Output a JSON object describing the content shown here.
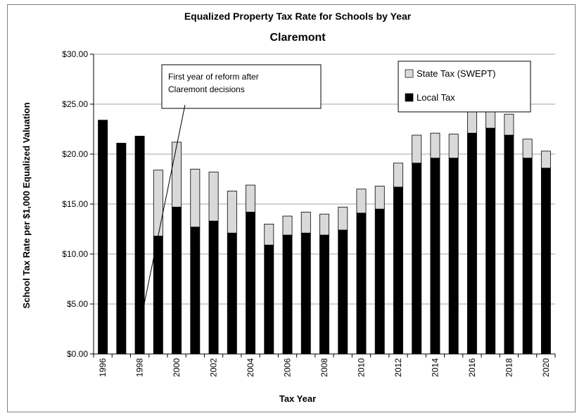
{
  "chart_data": {
    "type": "bar",
    "stacked": true,
    "title": "Equalized Property Tax Rate for Schools by Year",
    "subtitle": "Claremont",
    "xlabel": "Tax Year",
    "ylabel": "School Tax Rate per $1,000 Equalized Valuation",
    "ylim": [
      0,
      30
    ],
    "yticks": [
      "$0.00",
      "$5.00",
      "$10.00",
      "$15.00",
      "$20.00",
      "$25.00",
      "$30.00"
    ],
    "grid": true,
    "legend_position": "top-right",
    "categories": [
      "1996",
      "1997",
      "1998",
      "1999",
      "2000",
      "2001",
      "2002",
      "2003",
      "2004",
      "2005",
      "2006",
      "2007",
      "2008",
      "2009",
      "2010",
      "2011",
      "2012",
      "2013",
      "2014",
      "2015",
      "2016",
      "2017",
      "2018",
      "2019",
      "2020"
    ],
    "xtick_labels": [
      "1996",
      "",
      "1998",
      "",
      "2000",
      "",
      "2002",
      "",
      "2004",
      "",
      "2006",
      "",
      "2008",
      "",
      "2010",
      "",
      "2012",
      "",
      "2014",
      "",
      "2016",
      "",
      "2018",
      "",
      "2020"
    ],
    "series": [
      {
        "name": "Local Tax",
        "color": "#000000",
        "values": [
          23.4,
          21.1,
          21.8,
          11.8,
          14.7,
          12.7,
          13.3,
          12.1,
          14.2,
          10.9,
          11.9,
          12.1,
          11.9,
          12.4,
          14.1,
          14.5,
          16.7,
          19.1,
          19.6,
          19.6,
          22.1,
          22.6,
          21.9,
          19.6,
          18.6
        ]
      },
      {
        "name": "State Tax (SWEPT)",
        "color": "#d9d9d9",
        "values": [
          0,
          0,
          0,
          6.6,
          6.5,
          5.8,
          4.9,
          4.2,
          2.7,
          2.1,
          1.9,
          2.1,
          2.1,
          2.3,
          2.4,
          2.3,
          2.4,
          2.8,
          2.5,
          2.4,
          2.6,
          2.5,
          2.1,
          1.9,
          1.7
        ]
      }
    ],
    "annotation": {
      "text": [
        "First year of reform after",
        "Claremont decisions"
      ],
      "points_to": "1999"
    }
  }
}
